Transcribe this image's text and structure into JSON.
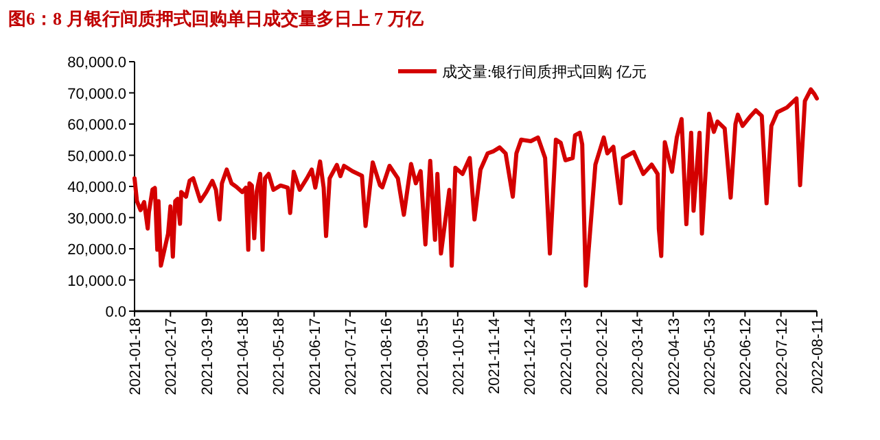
{
  "chart_data": {
    "type": "line",
    "title": "图6：8 月银行间质押式回购单日成交量多日上 7 万亿",
    "x": [
      "2021-01-18",
      "2021-01-20",
      "2021-01-23",
      "2021-01-26",
      "2021-01-29",
      "2021-01-30",
      "2021-02-02",
      "2021-02-04",
      "2021-02-06",
      "2021-02-07",
      "2021-02-09",
      "2021-02-15",
      "2021-02-17",
      "2021-02-19",
      "2021-02-21",
      "2021-02-23",
      "2021-02-25",
      "2021-02-26",
      "2021-03-02",
      "2021-03-05",
      "2021-03-08",
      "2021-03-14",
      "2021-03-19",
      "2021-03-24",
      "2021-03-27",
      "2021-03-30",
      "2021-04-01",
      "2021-04-05",
      "2021-04-09",
      "2021-04-13",
      "2021-04-18",
      "2021-04-21",
      "2021-04-23",
      "2021-04-24",
      "2021-04-26",
      "2021-04-28",
      "2021-04-30",
      "2021-05-03",
      "2021-05-05",
      "2021-05-07",
      "2021-05-10",
      "2021-05-14",
      "2021-05-20",
      "2021-05-26",
      "2021-05-28",
      "2021-05-31",
      "2021-06-05",
      "2021-06-11",
      "2021-06-15",
      "2021-06-18",
      "2021-06-22",
      "2021-06-25",
      "2021-06-27",
      "2021-06-30",
      "2021-07-06",
      "2021-07-09",
      "2021-07-12",
      "2021-07-19",
      "2021-07-27",
      "2021-07-30",
      "2021-08-05",
      "2021-08-11",
      "2021-08-13",
      "2021-08-19",
      "2021-08-26",
      "2021-08-31",
      "2021-09-06",
      "2021-09-10",
      "2021-09-14",
      "2021-09-18",
      "2021-09-22",
      "2021-09-26",
      "2021-09-28",
      "2021-10-01",
      "2021-10-08",
      "2021-10-10",
      "2021-10-13",
      "2021-10-19",
      "2021-10-25",
      "2021-10-29",
      "2021-11-03",
      "2021-11-09",
      "2021-11-14",
      "2021-11-19",
      "2021-11-24",
      "2021-11-30",
      "2021-12-03",
      "2021-12-07",
      "2021-12-15",
      "2021-12-21",
      "2021-12-27",
      "2021-12-31",
      "2022-01-05",
      "2022-01-09",
      "2022-01-13",
      "2022-01-19",
      "2022-01-21",
      "2022-01-25",
      "2022-01-27",
      "2022-01-30",
      "2022-02-07",
      "2022-02-14",
      "2022-02-17",
      "2022-02-22",
      "2022-02-28",
      "2022-03-02",
      "2022-03-11",
      "2022-03-19",
      "2022-03-26",
      "2022-03-31",
      "2022-04-01",
      "2022-04-03",
      "2022-04-06",
      "2022-04-12",
      "2022-04-16",
      "2022-04-20",
      "2022-04-24",
      "2022-04-28",
      "2022-04-30",
      "2022-05-05",
      "2022-05-07",
      "2022-05-13",
      "2022-05-17",
      "2022-05-20",
      "2022-05-26",
      "2022-05-31",
      "2022-06-04",
      "2022-06-06",
      "2022-06-10",
      "2022-06-16",
      "2022-06-21",
      "2022-06-26",
      "2022-06-30",
      "2022-07-04",
      "2022-07-09",
      "2022-07-17",
      "2022-07-25",
      "2022-07-28",
      "2022-08-01",
      "2022-08-06",
      "2022-08-09",
      "2022-08-11"
    ],
    "series": [
      {
        "name": "成交量:银行间质押式回购 亿元",
        "color": "#d40000",
        "values": [
          42600,
          35300,
          32400,
          35000,
          26500,
          31700,
          39000,
          39500,
          19700,
          35300,
          14600,
          24800,
          33600,
          17500,
          35300,
          36000,
          28000,
          38200,
          36700,
          41800,
          42600,
          35300,
          38200,
          41800,
          38900,
          29400,
          41000,
          45400,
          41000,
          39900,
          38200,
          39600,
          19700,
          41000,
          40300,
          23400,
          38200,
          44000,
          19700,
          42600,
          44000,
          38900,
          40300,
          39600,
          31500,
          44700,
          38900,
          42600,
          45400,
          39600,
          48000,
          39600,
          24100,
          42600,
          46900,
          43300,
          46600,
          44900,
          43400,
          27300,
          47700,
          40400,
          39700,
          46600,
          42600,
          30900,
          47200,
          41000,
          44900,
          21400,
          48200,
          22900,
          44000,
          18500,
          38900,
          14600,
          46000,
          44000,
          49100,
          29400,
          45400,
          50600,
          51300,
          52500,
          50600,
          36700,
          50600,
          55000,
          54500,
          55700,
          49100,
          18500,
          55000,
          54000,
          48400,
          49100,
          56400,
          57200,
          53500,
          8200,
          47000,
          55700,
          50600,
          52700,
          34600,
          49100,
          51000,
          44000,
          47000,
          44000,
          26400,
          17700,
          54200,
          44700,
          55700,
          61600,
          27900,
          57200,
          32200,
          57200,
          24900,
          63300,
          57500,
          60800,
          58600,
          36400,
          60000,
          63000,
          59400,
          62300,
          64400,
          62600,
          34600,
          59400,
          63800,
          65300,
          68200,
          40400,
          67400,
          71100,
          69600,
          68200
        ]
      }
    ],
    "xlim": [
      "2021-01-18",
      "2022-08-11"
    ],
    "xticks": [
      "2021-01-18",
      "2021-02-17",
      "2021-03-19",
      "2021-04-18",
      "2021-05-18",
      "2021-06-17",
      "2021-07-17",
      "2021-08-16",
      "2021-09-15",
      "2021-10-15",
      "2021-11-14",
      "2021-12-14",
      "2022-01-13",
      "2022-02-12",
      "2022-03-14",
      "2022-04-13",
      "2022-05-13",
      "2022-06-12",
      "2022-07-12",
      "2022-08-11"
    ],
    "ylim": [
      0,
      80000
    ],
    "yticks": [
      {
        "value": 0,
        "label": "0.0"
      },
      {
        "value": 10000,
        "label": "10,000.0"
      },
      {
        "value": 20000,
        "label": "20,000.0"
      },
      {
        "value": 30000,
        "label": "30,000.0"
      },
      {
        "value": 40000,
        "label": "40,000.0"
      },
      {
        "value": 50000,
        "label": "50,000.0"
      },
      {
        "value": 60000,
        "label": "60,000.0"
      },
      {
        "value": 70000,
        "label": "70,000.0"
      },
      {
        "value": 80000,
        "label": "80,000.0"
      }
    ],
    "legend": "top"
  }
}
